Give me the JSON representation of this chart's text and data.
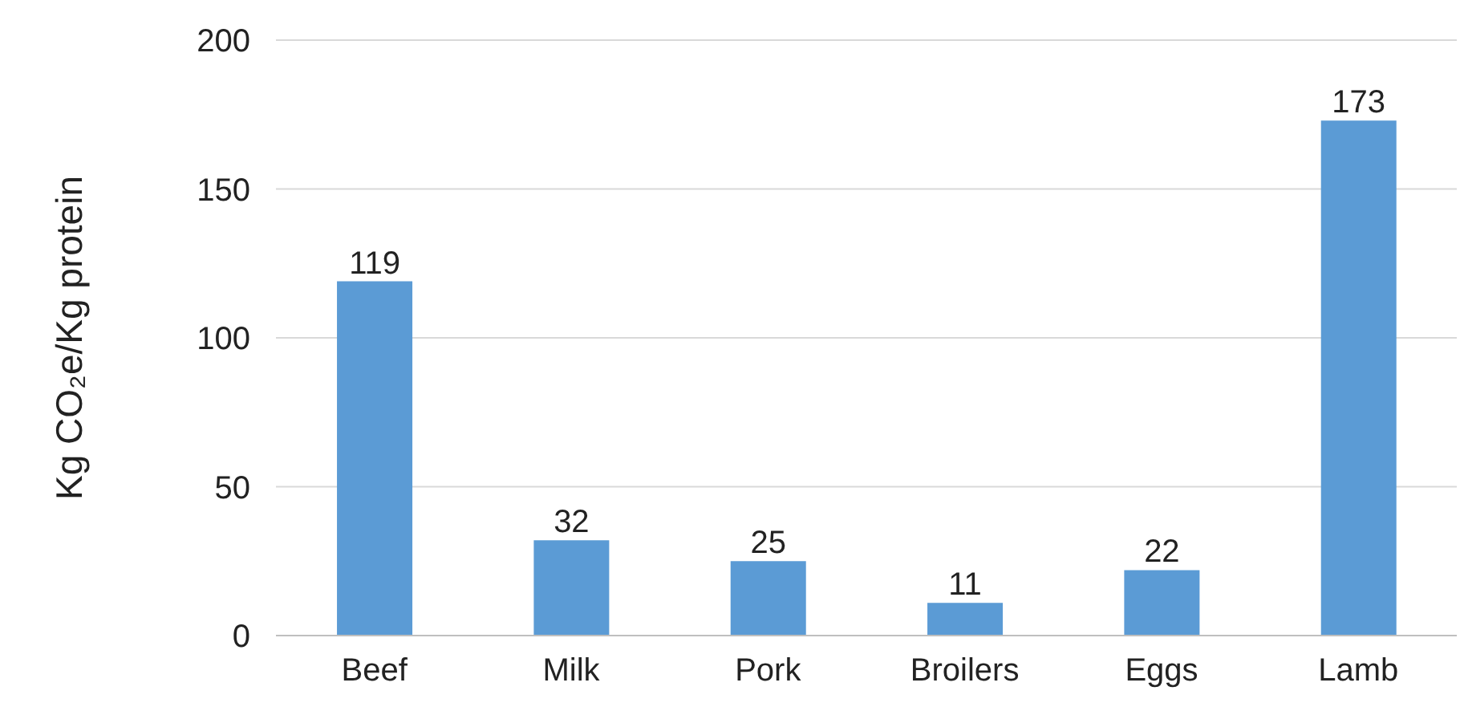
{
  "chart_data": {
    "type": "bar",
    "ylabel": "Kg CO₂e/Kg protein",
    "categories": [
      "Beef",
      "Milk",
      "Pork",
      "Broilers",
      "Eggs",
      "Lamb"
    ],
    "values": [
      119,
      32,
      25,
      11,
      22,
      173
    ],
    "color": "#5b9bd5",
    "ylim": [
      0,
      200
    ],
    "yticks": [
      0,
      50,
      100,
      150,
      200
    ],
    "grid": "y",
    "data_labels": true,
    "legend": false
  }
}
